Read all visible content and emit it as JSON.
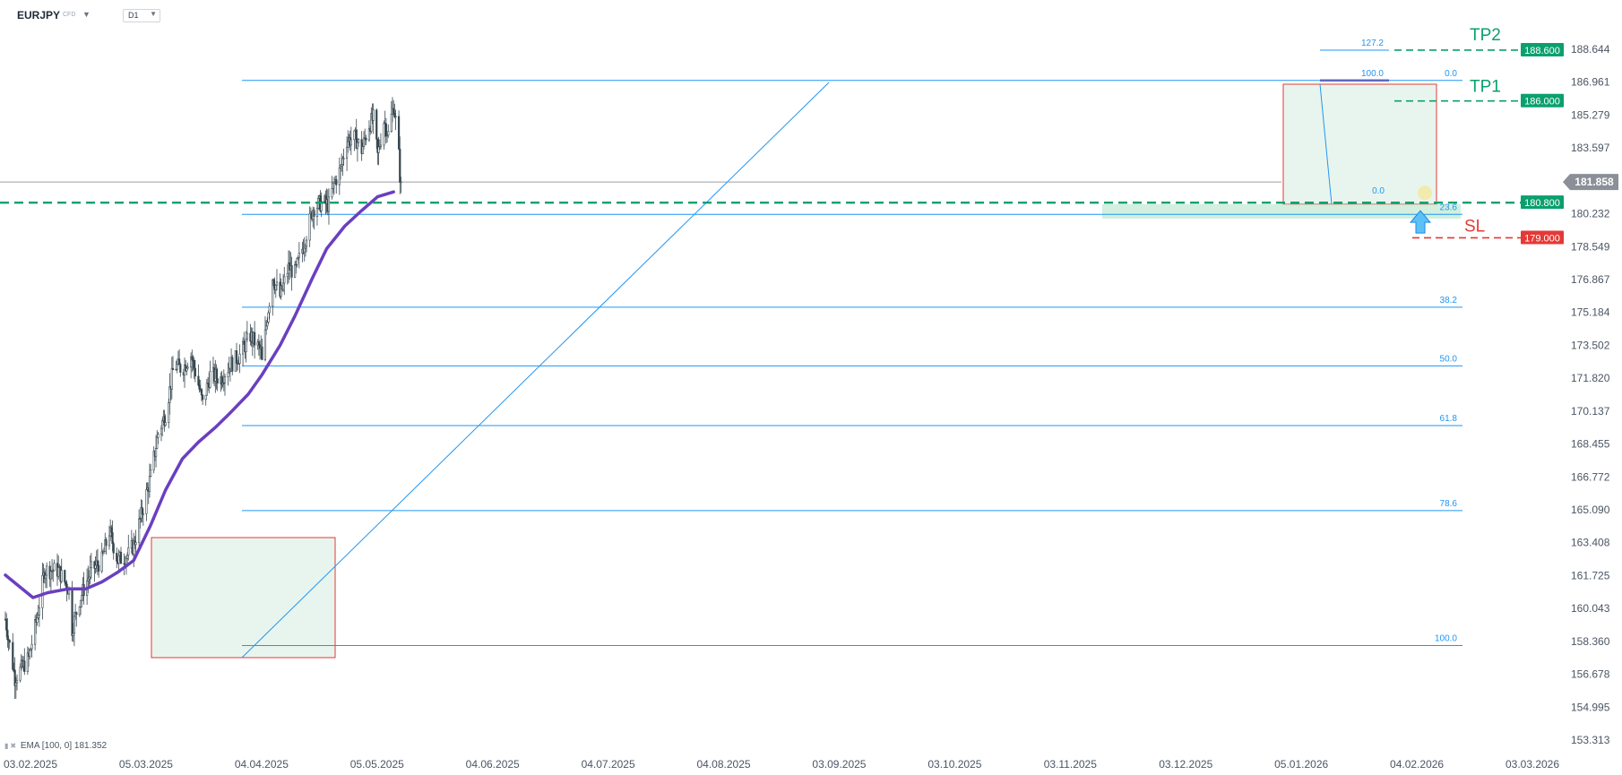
{
  "header": {
    "symbol": "EURJPY",
    "symbol_tag": "CFD",
    "timeframe": "D1",
    "symbol_menu_icon": "caret-down-icon",
    "timeframe_menu_icon": "caret-down-icon"
  },
  "indicator_legend": {
    "text": "EMA [100, 0] 181.352",
    "visibility_icon": "eye-icon",
    "remove_icon": "close-icon"
  },
  "colors": {
    "candle": "#37474f",
    "ema": "#6a3fc0",
    "fib": "#2196f3",
    "long_zone_fill": "#e8f5ee",
    "zone_border": "#e53935",
    "tp": "#0aa06e",
    "sl": "#e53935",
    "price_line": "#9aa0a6"
  },
  "chart_data": {
    "type": "candlestick",
    "title": "",
    "symbol": "EURJPY",
    "timeframe": "D1",
    "x_ticks": [
      "03.02.2025",
      "05.03.2025",
      "04.04.2025",
      "05.05.2025",
      "04.06.2025",
      "04.07.2025",
      "04.08.2025",
      "03.09.2025",
      "03.10.2025",
      "03.11.2025",
      "03.12.2025",
      "05.01.2026",
      "04.02.2026",
      "03.03.2026"
    ],
    "y_ticks": [
      "188.644",
      "186.961",
      "185.279",
      "183.597",
      "181.914",
      "180.232",
      "178.549",
      "176.867",
      "175.184",
      "173.502",
      "171.820",
      "170.137",
      "168.455",
      "166.772",
      "165.090",
      "163.408",
      "161.725",
      "160.043",
      "158.360",
      "156.678",
      "154.995",
      "153.313"
    ],
    "ylim": [
      153.313,
      188.644
    ],
    "x_range": [
      "2025-02-03",
      "2026-03-03"
    ],
    "current_price": "181.858",
    "series": [
      {
        "name": "EMA [100, 0]",
        "points": [
          [
            "2025-02-03",
            161.75
          ],
          [
            "2025-03-01",
            160.6
          ],
          [
            "2025-03-15",
            160.85
          ],
          [
            "2025-04-04",
            161.05
          ],
          [
            "2025-04-20",
            161.05
          ],
          [
            "2025-05-05",
            161.4
          ],
          [
            "2025-05-20",
            161.9
          ],
          [
            "2025-06-04",
            162.5
          ],
          [
            "2025-06-20",
            164.3
          ],
          [
            "2025-07-04",
            166.1
          ],
          [
            "2025-07-20",
            167.7
          ],
          [
            "2025-08-04",
            168.55
          ],
          [
            "2025-08-20",
            169.3
          ],
          [
            "2025-09-03",
            170.05
          ],
          [
            "2025-09-20",
            171.0
          ],
          [
            "2025-10-03",
            172.0
          ],
          [
            "2025-10-20",
            173.5
          ],
          [
            "2025-11-03",
            175.0
          ],
          [
            "2025-11-20",
            177.0
          ],
          [
            "2025-12-03",
            178.45
          ],
          [
            "2025-12-20",
            179.6
          ],
          [
            "2026-01-05",
            180.4
          ],
          [
            "2026-01-20",
            181.1
          ],
          [
            "2026-02-04",
            181.35
          ]
        ]
      }
    ],
    "fibonacci_retracement": [
      {
        "level": "0.0",
        "price": 180.8
      },
      {
        "level": "23.6",
        "price": 180.2
      },
      {
        "level": "38.2",
        "price": 175.45
      },
      {
        "level": "50.0",
        "price": 172.45
      },
      {
        "level": "61.8",
        "price": 169.4
      },
      {
        "level": "78.6",
        "price": 165.05
      },
      {
        "level": "100.0",
        "price": 158.15
      }
    ],
    "fibonacci_extension": [
      {
        "level": "100.0",
        "price": 187.05
      },
      {
        "level": "0.0",
        "price": 187.05
      },
      {
        "level": "127.2",
        "price": 188.6
      }
    ],
    "annotations": [
      {
        "label": "TP2",
        "price": "188.600"
      },
      {
        "label": "TP1",
        "price": "186.000"
      },
      {
        "label": "entry",
        "price": "180.800"
      },
      {
        "label": "SL",
        "price": "179.000"
      }
    ]
  }
}
